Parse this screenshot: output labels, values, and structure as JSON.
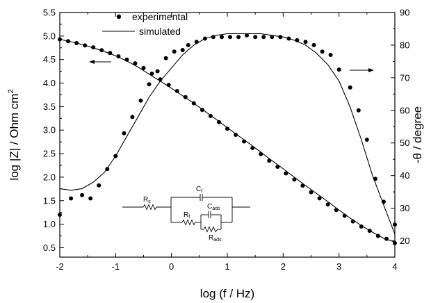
{
  "chart_data": {
    "type": "scatter",
    "xlabel": "log (f / Hz)",
    "ylabel_left": "log |Z| / Ohm cm",
    "ylabel_left_sup": "2",
    "ylabel_right": "-θ / degree",
    "xlim": [
      -2,
      4
    ],
    "ylim_left": [
      0.3,
      5.5
    ],
    "ylim_right": [
      15,
      90
    ],
    "x_ticks": [
      "-2",
      "-1",
      "0",
      "1",
      "2",
      "3",
      "4"
    ],
    "y_left_ticks": [
      "0.5",
      "1.0",
      "1.5",
      "2.0",
      "2.5",
      "3.0",
      "3.5",
      "4.0",
      "4.5",
      "5.0",
      "5.5"
    ],
    "y_right_ticks": [
      "20",
      "30",
      "40",
      "50",
      "60",
      "70",
      "80",
      "90"
    ],
    "grid": false,
    "legend": {
      "position": "top-center",
      "entries": [
        {
          "label": "experimental",
          "marker": "dot"
        },
        {
          "label": "simulated",
          "marker": "line"
        }
      ]
    },
    "series": [
      {
        "name": "experimental",
        "quantity": "log |Z|",
        "axis": "left",
        "style": "dots",
        "x": [
          -2,
          -1.85,
          -1.7,
          -1.55,
          -1.4,
          -1.25,
          -1.1,
          -0.95,
          -0.8,
          -0.65,
          -0.5,
          -0.35,
          -0.2,
          -0.05,
          0.1,
          0.25,
          0.4,
          0.55,
          0.7,
          0.85,
          1,
          1.15,
          1.3,
          1.45,
          1.6,
          1.75,
          1.9,
          2.05,
          2.2,
          2.35,
          2.5,
          2.65,
          2.8,
          2.95,
          3.1,
          3.25,
          3.4,
          3.55,
          3.7,
          3.85,
          4
        ],
        "y": [
          4.93,
          4.89,
          4.85,
          4.8,
          4.76,
          4.7,
          4.64,
          4.57,
          4.5,
          4.42,
          4.32,
          4.2,
          4.08,
          3.96,
          3.83,
          3.7,
          3.57,
          3.43,
          3.3,
          3.17,
          3.03,
          2.9,
          2.76,
          2.62,
          2.49,
          2.35,
          2.22,
          2.08,
          1.95,
          1.82,
          1.68,
          1.55,
          1.42,
          1.3,
          1.18,
          1.06,
          0.95,
          0.86,
          0.75,
          0.69,
          0.6
        ]
      },
      {
        "name": "simulated",
        "quantity": "log |Z|",
        "axis": "left",
        "style": "line",
        "x": [
          -2,
          -1.8,
          -1.6,
          -1.4,
          -1.2,
          -1,
          -0.8,
          -0.6,
          -0.4,
          -0.2,
          0,
          0.2,
          0.4,
          0.6,
          0.8,
          1,
          1.2,
          1.4,
          1.6,
          1.8,
          2,
          2.2,
          2.4,
          2.6,
          2.8,
          3,
          3.2,
          3.4,
          3.6,
          3.8,
          4
        ],
        "y": [
          4.93,
          4.88,
          4.82,
          4.75,
          4.67,
          4.58,
          4.47,
          4.34,
          4.19,
          4.04,
          3.89,
          3.73,
          3.57,
          3.4,
          3.23,
          3.05,
          2.88,
          2.71,
          2.53,
          2.35,
          2.18,
          2.0,
          1.82,
          1.65,
          1.48,
          1.3,
          1.13,
          0.97,
          0.83,
          0.7,
          0.62
        ]
      },
      {
        "name": "experimental",
        "quantity": "-θ",
        "axis": "right",
        "style": "dots",
        "x": [
          -2,
          -1.8,
          -1.6,
          -1.45,
          -1.3,
          -1.15,
          -1,
          -0.85,
          -0.7,
          -0.55,
          -0.4,
          -0.25,
          -0.1,
          0.05,
          0.2,
          0.3,
          0.45,
          0.6,
          0.75,
          0.9,
          1.05,
          1.2,
          1.35,
          1.5,
          1.65,
          1.8,
          1.95,
          2.1,
          2.25,
          2.4,
          2.55,
          2.7,
          2.85,
          3,
          3.2,
          3.35,
          3.5,
          3.65,
          3.8,
          4
        ],
        "y": [
          28,
          33,
          34,
          33,
          37,
          42,
          46,
          53,
          58,
          63,
          68,
          72,
          76,
          78,
          78.5,
          80,
          81,
          82,
          82.5,
          82.5,
          82.5,
          82.5,
          83,
          82.5,
          82.5,
          82.5,
          82.5,
          82,
          81.5,
          81,
          80,
          78,
          77,
          72.5,
          67,
          60,
          51,
          39,
          32,
          25
        ]
      },
      {
        "name": "simulated",
        "quantity": "-θ",
        "axis": "right",
        "style": "line",
        "x": [
          -2,
          -1.8,
          -1.6,
          -1.4,
          -1.2,
          -1,
          -0.8,
          -0.6,
          -0.4,
          -0.2,
          0,
          0.2,
          0.4,
          0.6,
          0.8,
          1,
          1.2,
          1.4,
          1.6,
          1.8,
          2,
          2.2,
          2.4,
          2.6,
          2.8,
          3,
          3.2,
          3.4,
          3.6,
          3.8,
          4
        ],
        "y": [
          36,
          35.5,
          36,
          38,
          41,
          46,
          52,
          58,
          64,
          69,
          73,
          77,
          80,
          82,
          83,
          83.5,
          83.5,
          83.5,
          83.5,
          83,
          82.5,
          81.5,
          80,
          77.5,
          74,
          69,
          61,
          51,
          40,
          31,
          22
        ]
      }
    ],
    "annotations": [
      {
        "type": "arrow",
        "text": "",
        "direction": "left",
        "target": "log |Z|"
      },
      {
        "type": "arrow",
        "text": "",
        "direction": "right",
        "target": "-θ"
      }
    ],
    "inset_circuit": {
      "elements": [
        {
          "label": "R",
          "sub": "s"
        },
        {
          "label": "C",
          "sub": "f"
        },
        {
          "label": "R",
          "sub": "f"
        },
        {
          "label": "C",
          "sub": "ads"
        },
        {
          "label": "R",
          "sub": "ads"
        }
      ]
    }
  }
}
